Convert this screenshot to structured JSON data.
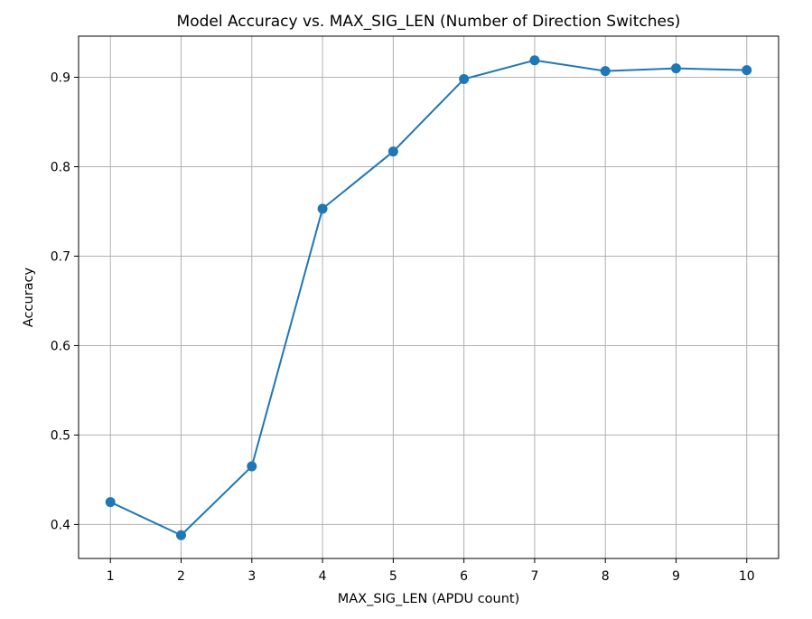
{
  "chart_data": {
    "type": "line",
    "title": "Model Accuracy vs. MAX_SIG_LEN (Number of Direction Switches)",
    "xlabel": "MAX_SIG_LEN (APDU count)",
    "ylabel": "Accuracy",
    "x": [
      1,
      2,
      3,
      4,
      5,
      6,
      7,
      8,
      9,
      10
    ],
    "series": [
      {
        "values": [
          0.425,
          0.388,
          0.465,
          0.753,
          0.817,
          0.898,
          0.919,
          0.907,
          0.91,
          0.908
        ]
      }
    ],
    "xticks": [
      1,
      2,
      3,
      4,
      5,
      6,
      7,
      8,
      9,
      10
    ],
    "xtick_labels": [
      "1",
      "2",
      "3",
      "4",
      "5",
      "6",
      "7",
      "8",
      "9",
      "10"
    ],
    "yticks": [
      0.4,
      0.5,
      0.6,
      0.7,
      0.8,
      0.9
    ],
    "ytick_labels": [
      "0.4",
      "0.5",
      "0.6",
      "0.7",
      "0.8",
      "0.9"
    ],
    "xlim": [
      0.55,
      10.45
    ],
    "ylim": [
      0.362,
      0.946
    ],
    "grid": true,
    "line_color": "#1f77b4",
    "marker": "circle"
  }
}
